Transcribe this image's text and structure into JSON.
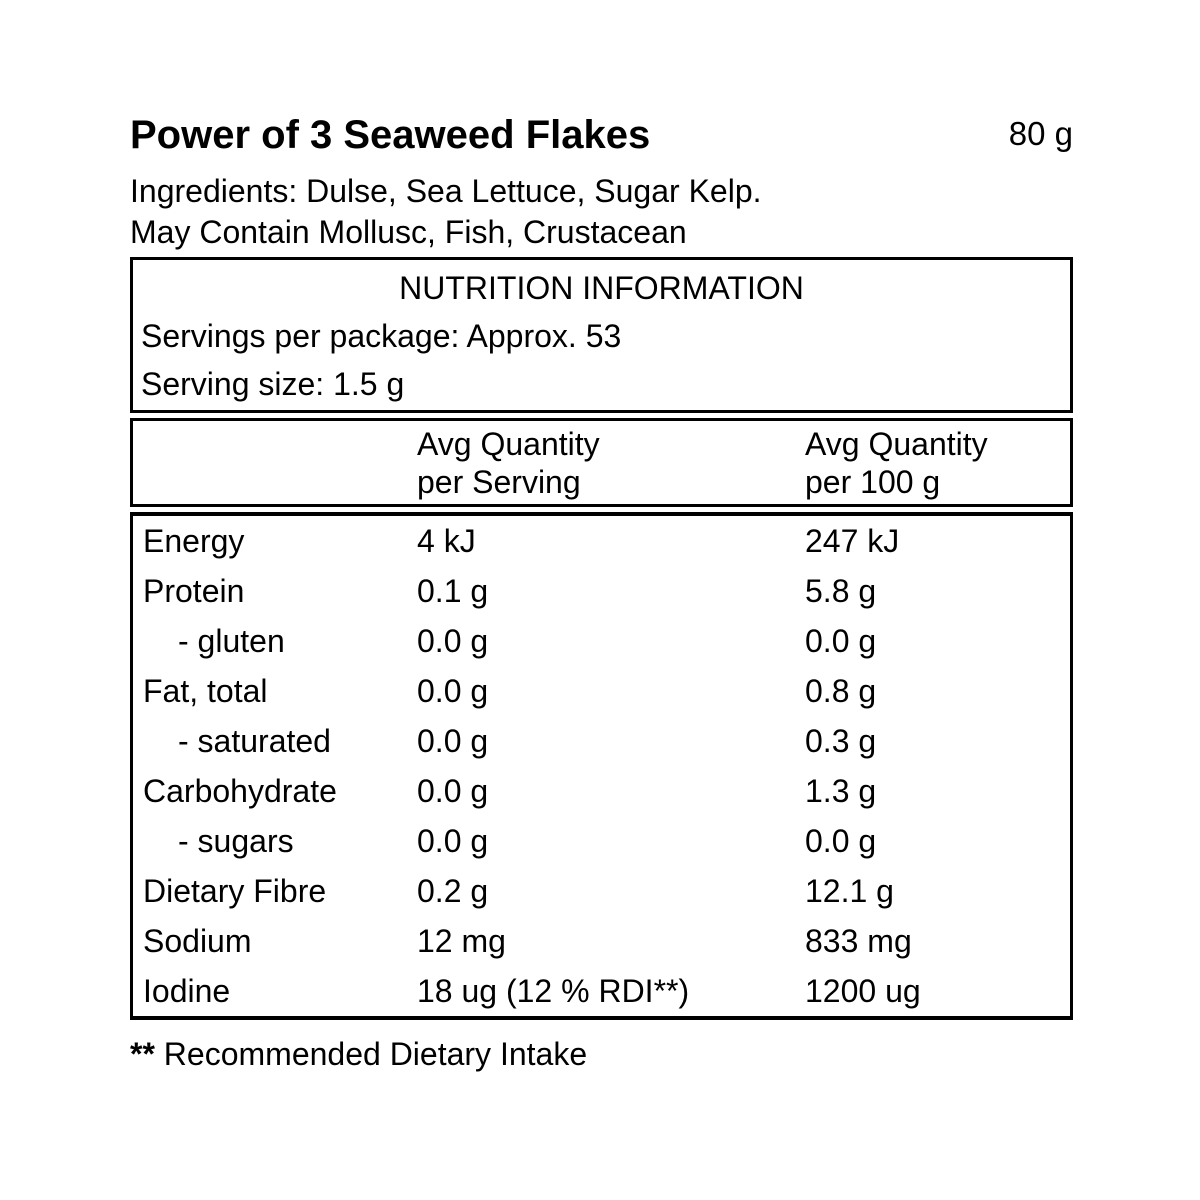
{
  "colors": {
    "background": "#ffffff",
    "text": "#000000",
    "border": "#000000"
  },
  "product": {
    "title": "Power of 3 Seaweed Flakes",
    "net_weight": "80 g",
    "ingredients": "Ingredients: Dulse, Sea Lettuce, Sugar Kelp.",
    "may_contain": "May Contain Mollusc, Fish, Crustacean"
  },
  "panel": {
    "title": "NUTRITION INFORMATION",
    "servings_per_package": "Servings per package: Approx. 53",
    "serving_size": "Serving size: 1.5 g",
    "columns": {
      "per_serving": [
        "Avg Quantity",
        "per Serving"
      ],
      "per_100g": [
        "Avg Quantity",
        "per 100 g"
      ]
    },
    "rows": [
      {
        "label": "Energy",
        "per_serving": "4 kJ",
        "per_100g": "247 kJ",
        "indent": false
      },
      {
        "label": "Protein",
        "per_serving": "0.1 g",
        "per_100g": "5.8 g",
        "indent": false
      },
      {
        "label": "- gluten",
        "per_serving": "0.0 g",
        "per_100g": "0.0 g",
        "indent": true
      },
      {
        "label": "Fat, total",
        "per_serving": "0.0 g",
        "per_100g": "0.8 g",
        "indent": false
      },
      {
        "label": "- saturated",
        "per_serving": "0.0 g",
        "per_100g": "0.3 g",
        "indent": true
      },
      {
        "label": "Carbohydrate",
        "per_serving": "0.0 g",
        "per_100g": "1.3 g",
        "indent": false
      },
      {
        "label": "- sugars",
        "per_serving": "0.0 g",
        "per_100g": "0.0 g",
        "indent": true
      },
      {
        "label": "Dietary Fibre",
        "per_serving": "0.2 g",
        "per_100g": "12.1 g",
        "indent": false
      },
      {
        "label": "Sodium",
        "per_serving": "12 mg",
        "per_100g": "833 mg",
        "indent": false
      },
      {
        "label": "Iodine",
        "per_serving": "18 ug (12 % RDI**)",
        "per_100g": "1200 ug",
        "indent": false
      }
    ],
    "footnote_marker": "**",
    "footnote_text": " Recommended Dietary Intake"
  }
}
